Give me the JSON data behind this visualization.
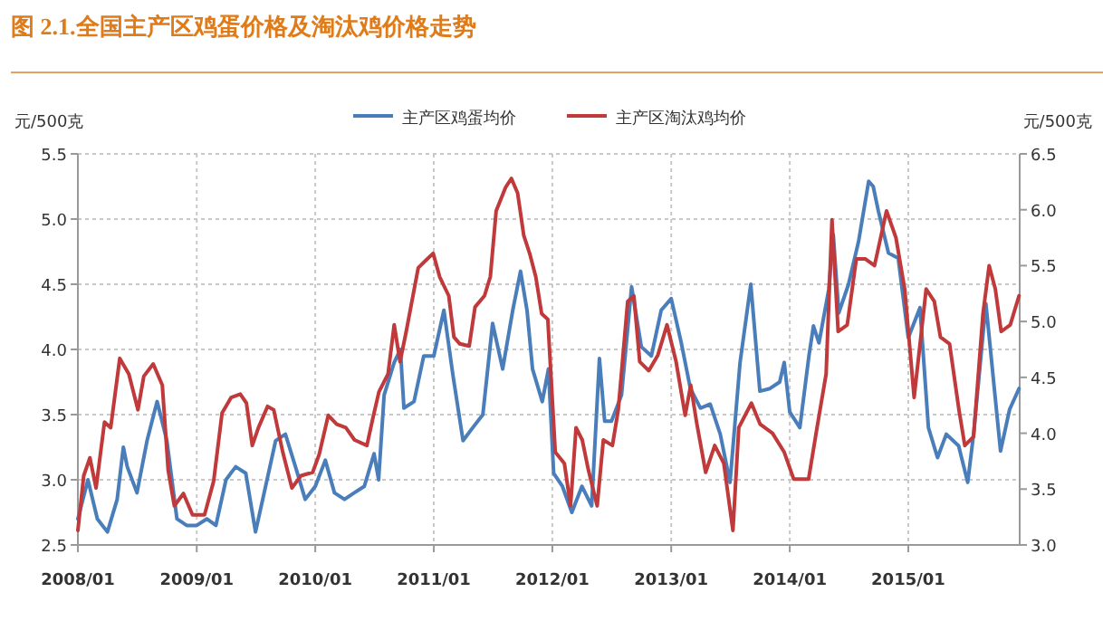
{
  "chart_data": {
    "type": "line",
    "title": "图 2.1.全国主产区鸡蛋价格及淘汰鸡价格走势",
    "ylabel": "元/500克",
    "y2label": "元/500克",
    "xlim": [
      "2008-01-01",
      "2015-12-10"
    ],
    "xticks": [
      {
        "value": "2008-01-01",
        "label": "2008/01"
      },
      {
        "value": "2009-01-01",
        "label": "2009/01"
      },
      {
        "value": "2010-01-01",
        "label": "2010/01"
      },
      {
        "value": "2011-01-01",
        "label": "2011/01"
      },
      {
        "value": "2012-01-01",
        "label": "2012/01"
      },
      {
        "value": "2013-01-01",
        "label": "2013/01"
      },
      {
        "value": "2014-01-01",
        "label": "2014/01"
      },
      {
        "value": "2015-01-01",
        "label": "2015/01"
      }
    ],
    "ylim": [
      2.5,
      5.5
    ],
    "yticks": [
      {
        "value": 2.5,
        "label": "2.5"
      },
      {
        "value": 3,
        "label": "3.0"
      },
      {
        "value": 3.5,
        "label": "3.5"
      },
      {
        "value": 4,
        "label": "4.0"
      },
      {
        "value": 4.5,
        "label": "4.5"
      },
      {
        "value": 5,
        "label": "5.0"
      },
      {
        "value": 5.5,
        "label": "5.5"
      }
    ],
    "y2lim": [
      3,
      6.5
    ],
    "y2ticks": [
      {
        "value": 3,
        "label": "3.0"
      },
      {
        "value": 3.5,
        "label": "3.5"
      },
      {
        "value": 4,
        "label": "4.0"
      },
      {
        "value": 4.5,
        "label": "4.5"
      },
      {
        "value": 5,
        "label": "5.0"
      },
      {
        "value": 5.5,
        "label": "5.5"
      },
      {
        "value": 6,
        "label": "6.0"
      },
      {
        "value": 6.5,
        "label": "6.5"
      }
    ],
    "grid": true,
    "legend": "top",
    "line_style": "solid",
    "marker": "none",
    "series": [
      {
        "name": "主产区鸡蛋均价",
        "color": "#4a7ebb",
        "axis": "y",
        "x": [
          "2008-01-01",
          "2008-02-01",
          "2008-03-01",
          "2008-04-01",
          "2008-05-01",
          "2008-05-20",
          "2008-06-01",
          "2008-07-01",
          "2008-08-01",
          "2008-09-01",
          "2008-10-01",
          "2008-11-01",
          "2008-12-01",
          "2009-01-01",
          "2009-02-01",
          "2009-03-01",
          "2009-04-01",
          "2009-05-01",
          "2009-06-01",
          "2009-07-01",
          "2009-08-01",
          "2009-09-01",
          "2009-10-01",
          "2009-11-01",
          "2009-12-01",
          "2010-01-01",
          "2010-02-01",
          "2010-03-01",
          "2010-04-01",
          "2010-05-01",
          "2010-06-01",
          "2010-07-01",
          "2010-07-15",
          "2010-08-01",
          "2010-09-01",
          "2010-09-20",
          "2010-10-01",
          "2010-11-01",
          "2010-12-01",
          "2011-01-01",
          "2011-02-01",
          "2011-03-01",
          "2011-04-01",
          "2011-05-01",
          "2011-06-01",
          "2011-07-01",
          "2011-08-01",
          "2011-09-01",
          "2011-09-25",
          "2011-10-15",
          "2011-11-01",
          "2011-12-01",
          "2011-12-20",
          "2012-01-05",
          "2012-02-01",
          "2012-03-01",
          "2012-04-01",
          "2012-05-01",
          "2012-05-25",
          "2012-06-10",
          "2012-07-01",
          "2012-08-01",
          "2012-09-01",
          "2012-10-01",
          "2012-11-01",
          "2012-12-01",
          "2013-01-01",
          "2013-02-01",
          "2013-03-01",
          "2013-04-01",
          "2013-05-01",
          "2013-06-01",
          "2013-07-01",
          "2013-08-01",
          "2013-09-03",
          "2013-10-01",
          "2013-11-01",
          "2013-12-01",
          "2013-12-15",
          "2014-01-01",
          "2014-02-01",
          "2014-03-01",
          "2014-03-15",
          "2014-04-01",
          "2014-05-01",
          "2014-05-15",
          "2014-06-01",
          "2014-07-01",
          "2014-08-01",
          "2014-09-01",
          "2014-09-15",
          "2014-10-01",
          "2014-11-01",
          "2014-12-01",
          "2015-01-01",
          "2015-02-06",
          "2015-03-04",
          "2015-04-01",
          "2015-04-28",
          "2015-06-05",
          "2015-07-03",
          "2015-07-21",
          "2015-08-28",
          "2015-10-12",
          "2015-11-09",
          "2015-12-08"
        ],
        "values": [
          2.7,
          3.0,
          2.7,
          2.6,
          2.85,
          3.25,
          3.1,
          2.9,
          3.3,
          3.6,
          3.3,
          2.7,
          2.65,
          2.65,
          2.7,
          2.65,
          3.0,
          3.1,
          3.05,
          2.6,
          2.95,
          3.3,
          3.35,
          3.1,
          2.85,
          2.95,
          3.15,
          2.9,
          2.85,
          2.9,
          2.95,
          3.2,
          3.0,
          3.65,
          3.9,
          4.0,
          3.55,
          3.6,
          3.95,
          3.95,
          4.3,
          3.8,
          3.3,
          3.4,
          3.5,
          4.2,
          3.85,
          4.3,
          4.6,
          4.3,
          3.85,
          3.6,
          3.85,
          3.05,
          2.95,
          2.75,
          2.95,
          2.8,
          3.93,
          3.45,
          3.45,
          3.65,
          4.48,
          4.02,
          3.95,
          4.3,
          4.39,
          4.05,
          3.7,
          3.55,
          3.58,
          3.35,
          2.98,
          3.9,
          4.5,
          3.68,
          3.7,
          3.75,
          3.9,
          3.52,
          3.4,
          3.95,
          4.18,
          4.05,
          4.46,
          4.88,
          4.28,
          4.5,
          4.83,
          5.29,
          5.25,
          5.06,
          4.74,
          4.7,
          4.09,
          4.32,
          3.4,
          3.17,
          3.35,
          3.26,
          2.98,
          3.35,
          4.35,
          3.22,
          3.54,
          3.7
        ]
      },
      {
        "name": "主产区淘汰鸡均价",
        "color": "#c0393b",
        "axis": "y2",
        "x": [
          "2008-01-01",
          "2008-01-19",
          "2008-02-07",
          "2008-02-26",
          "2008-03-23",
          "2008-04-11",
          "2008-05-09",
          "2008-06-06",
          "2008-07-04",
          "2008-07-22",
          "2008-08-20",
          "2008-09-17",
          "2008-10-05",
          "2008-10-24",
          "2008-11-21",
          "2008-12-19",
          "2009-01-25",
          "2009-02-22",
          "2009-03-20",
          "2009-04-17",
          "2009-05-15",
          "2009-06-03",
          "2009-06-21",
          "2009-07-10",
          "2009-08-07",
          "2009-08-26",
          "2009-09-23",
          "2009-10-21",
          "2009-11-18",
          "2009-12-24",
          "2010-01-13",
          "2010-02-10",
          "2010-03-08",
          "2010-04-05",
          "2010-05-02",
          "2010-06-09",
          "2010-06-27",
          "2010-07-16",
          "2010-08-13",
          "2010-09-01",
          "2010-09-19",
          "2010-10-08",
          "2010-11-14",
          "2010-12-12",
          "2010-12-30",
          "2011-01-19",
          "2011-02-16",
          "2011-03-04",
          "2011-03-22",
          "2011-04-20",
          "2011-05-08",
          "2011-06-06",
          "2011-06-24",
          "2011-07-12",
          "2011-08-10",
          "2011-08-28",
          "2011-09-16",
          "2011-10-05",
          "2011-10-23",
          "2011-11-11",
          "2011-11-29",
          "2011-12-18",
          "2012-01-10",
          "2012-02-07",
          "2012-02-26",
          "2012-03-14",
          "2012-04-02",
          "2012-04-21",
          "2012-05-18",
          "2012-06-06",
          "2012-07-04",
          "2012-07-22",
          "2012-08-20",
          "2012-09-08",
          "2012-09-26",
          "2012-10-24",
          "2012-11-21",
          "2012-12-19",
          "2013-01-16",
          "2013-02-13",
          "2013-03-02",
          "2013-03-20",
          "2013-04-17",
          "2013-05-15",
          "2013-06-12",
          "2013-07-10",
          "2013-07-28",
          "2013-09-05",
          "2013-10-02",
          "2013-11-09",
          "2013-12-15",
          "2014-01-13",
          "2014-02-28",
          "2014-03-26",
          "2014-04-23",
          "2014-05-11",
          "2014-05-30",
          "2014-06-27",
          "2014-07-25",
          "2014-08-22",
          "2014-09-19",
          "2014-10-26",
          "2014-11-24",
          "2014-12-21",
          "2015-01-19",
          "2015-02-25",
          "2015-03-22",
          "2015-04-10",
          "2015-05-08",
          "2015-06-06",
          "2015-06-24",
          "2015-07-21",
          "2015-08-19",
          "2015-09-07",
          "2015-09-26",
          "2015-10-14",
          "2015-11-11",
          "2015-12-08"
        ],
        "values": [
          3.13,
          3.62,
          3.78,
          3.51,
          4.1,
          4.05,
          4.67,
          4.53,
          4.21,
          4.51,
          4.62,
          4.43,
          3.67,
          3.35,
          3.46,
          3.27,
          3.27,
          3.57,
          4.18,
          4.32,
          4.35,
          4.27,
          3.89,
          4.05,
          4.24,
          4.21,
          3.83,
          3.51,
          3.62,
          3.65,
          3.81,
          4.16,
          4.08,
          4.05,
          3.94,
          3.89,
          4.13,
          4.37,
          4.53,
          4.97,
          4.64,
          4.91,
          5.48,
          5.56,
          5.61,
          5.4,
          5.23,
          4.86,
          4.8,
          4.78,
          5.13,
          5.23,
          5.4,
          5.99,
          6.2,
          6.28,
          6.15,
          5.77,
          5.61,
          5.4,
          5.07,
          5.02,
          3.83,
          3.73,
          3.35,
          4.05,
          3.94,
          3.67,
          3.35,
          3.94,
          3.89,
          4.21,
          5.18,
          5.23,
          4.64,
          4.56,
          4.7,
          4.97,
          4.64,
          4.16,
          4.43,
          4.1,
          3.65,
          3.89,
          3.73,
          3.13,
          4.05,
          4.27,
          4.08,
          4.0,
          3.83,
          3.59,
          3.59,
          4.05,
          4.53,
          5.91,
          4.91,
          4.97,
          5.56,
          5.56,
          5.5,
          5.99,
          5.75,
          5.29,
          4.32,
          5.29,
          5.18,
          4.86,
          4.8,
          4.21,
          3.89,
          3.97,
          5.07,
          5.5,
          5.29,
          4.91,
          4.97,
          5.23
        ]
      }
    ]
  }
}
